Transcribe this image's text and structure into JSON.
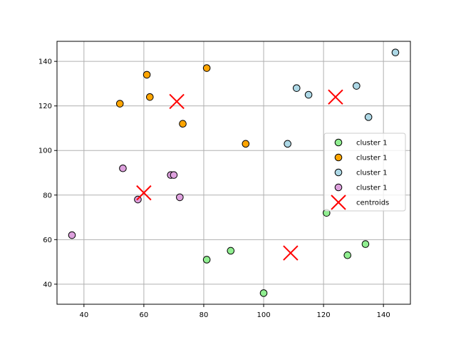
{
  "chart_data": {
    "type": "scatter",
    "title": "",
    "xlabel": "",
    "ylabel": "",
    "xlim": [
      31,
      149
    ],
    "ylim": [
      31,
      149
    ],
    "xticks": [
      40,
      60,
      80,
      100,
      120,
      140
    ],
    "yticks": [
      40,
      60,
      80,
      100,
      120,
      140
    ],
    "grid": true,
    "legend_position": "right",
    "series": [
      {
        "name": "cluster 1",
        "color": "#90ee90",
        "marker": "circle",
        "points": [
          [
            81,
            51
          ],
          [
            89,
            55
          ],
          [
            100,
            36
          ],
          [
            121,
            72
          ],
          [
            128,
            53
          ],
          [
            134,
            58
          ]
        ]
      },
      {
        "name": "cluster 1",
        "color": "#ffa500",
        "marker": "circle",
        "points": [
          [
            52,
            121
          ],
          [
            61,
            134
          ],
          [
            62,
            124
          ],
          [
            73,
            112
          ],
          [
            81,
            137
          ],
          [
            94,
            103
          ]
        ]
      },
      {
        "name": "cluster 1",
        "color": "#add8e6",
        "marker": "circle",
        "points": [
          [
            108,
            103
          ],
          [
            111,
            128
          ],
          [
            115,
            125
          ],
          [
            131,
            129
          ],
          [
            135,
            115
          ],
          [
            144,
            144
          ]
        ]
      },
      {
        "name": "cluster 1",
        "color": "#dda0dd",
        "marker": "circle",
        "points": [
          [
            36,
            62
          ],
          [
            53,
            92
          ],
          [
            58,
            78
          ],
          [
            69,
            89
          ],
          [
            70,
            89
          ],
          [
            72,
            79
          ]
        ]
      },
      {
        "name": "centroids",
        "color": "#ff0000",
        "marker": "x",
        "points": [
          [
            71,
            122
          ],
          [
            124,
            124
          ],
          [
            109,
            54
          ],
          [
            60,
            81
          ]
        ]
      }
    ]
  }
}
